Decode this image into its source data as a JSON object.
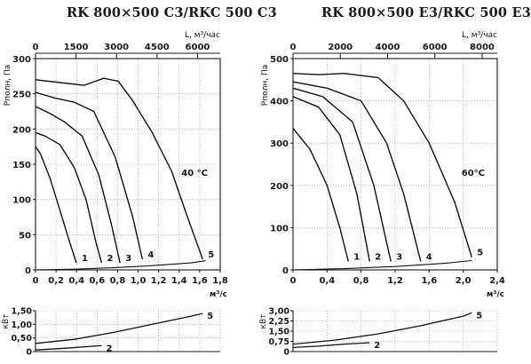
{
  "chart_data": [
    {
      "type": "line",
      "title": "RK 800×500 C3/RKC 500 C3",
      "xlabel": "м³/с",
      "ylabel": "Pполн, Па",
      "top_axis_label": "L, м³/час",
      "annotation": "40 °C",
      "xlim": [
        0,
        1.9
      ],
      "ylim": [
        0,
        300
      ],
      "xticks": [
        "0",
        "0,2",
        "0,4",
        "0,6",
        "0,8",
        "1,0",
        "1,2",
        "1,4",
        "1,6",
        "1,8"
      ],
      "yticks": [
        "0",
        "50",
        "100",
        "150",
        "200",
        "250",
        "300"
      ],
      "top_ticks": [
        "0",
        "1500",
        "3000",
        "4500",
        "6000"
      ],
      "series": [
        {
          "name": "1",
          "x": [
            0,
            0.05,
            0.15,
            0.25,
            0.35,
            0.42
          ],
          "y": [
            175,
            165,
            130,
            85,
            40,
            10
          ]
        },
        {
          "name": "2",
          "x": [
            0,
            0.1,
            0.25,
            0.4,
            0.52,
            0.62,
            0.68
          ],
          "y": [
            195,
            190,
            178,
            145,
            100,
            40,
            10
          ]
        },
        {
          "name": "3",
          "x": [
            0,
            0.15,
            0.3,
            0.48,
            0.65,
            0.78,
            0.87
          ],
          "y": [
            232,
            222,
            210,
            190,
            135,
            65,
            10
          ]
        },
        {
          "name": "4",
          "x": [
            0,
            0.2,
            0.4,
            0.6,
            0.82,
            1.0,
            1.1
          ],
          "y": [
            252,
            244,
            238,
            225,
            160,
            75,
            15
          ]
        },
        {
          "name": "5",
          "x": [
            0,
            0.25,
            0.5,
            0.7,
            0.85,
            1.0,
            1.2,
            1.4,
            1.55,
            1.72
          ],
          "y": [
            270,
            266,
            262,
            272,
            268,
            240,
            195,
            140,
            80,
            15
          ]
        }
      ],
      "system_curve": {
        "x": [
          0,
          0.4,
          0.8,
          1.2,
          1.6,
          1.75
        ],
        "y": [
          0,
          1,
          3,
          6,
          10,
          13
        ]
      },
      "power_panel": {
        "ylabel": "кВт",
        "yticks": [
          "0",
          "0,50",
          "1,00",
          "1,50"
        ],
        "ylim": [
          0,
          1.5
        ],
        "series": [
          {
            "name": "2",
            "x": [
              0,
              0.3,
              0.6,
              0.68
            ],
            "y": [
              0.06,
              0.12,
              0.2,
              0.22
            ]
          },
          {
            "name": "5",
            "x": [
              0,
              0.4,
              0.8,
              1.2,
              1.6,
              1.72
            ],
            "y": [
              0.3,
              0.45,
              0.7,
              1.0,
              1.3,
              1.4
            ]
          }
        ]
      }
    },
    {
      "type": "line",
      "title": "RK 800×500 E3/RKC 500 E3",
      "xlabel": "м³/с",
      "ylabel": "Pполн, Па",
      "top_axis_label": "L, м³/час",
      "annotation": "60°C",
      "xlim": [
        0,
        2.4
      ],
      "ylim": [
        0,
        500
      ],
      "xticks": [
        "0",
        "0,4",
        "0,8",
        "1,2",
        "1,6",
        "2,0",
        "2,4"
      ],
      "yticks": [
        "0",
        "100",
        "200",
        "300",
        "400",
        "500"
      ],
      "top_ticks": [
        "0",
        "2000",
        "4000",
        "6000",
        "8000"
      ],
      "series": [
        {
          "name": "1",
          "x": [
            0,
            0.2,
            0.4,
            0.55,
            0.65
          ],
          "y": [
            335,
            285,
            200,
            100,
            20
          ]
        },
        {
          "name": "2",
          "x": [
            0,
            0.3,
            0.55,
            0.75,
            0.9
          ],
          "y": [
            410,
            385,
            320,
            180,
            20
          ]
        },
        {
          "name": "3",
          "x": [
            0,
            0.35,
            0.7,
            0.95,
            1.15
          ],
          "y": [
            430,
            410,
            350,
            200,
            20
          ]
        },
        {
          "name": "4",
          "x": [
            0,
            0.4,
            0.8,
            1.1,
            1.3,
            1.5
          ],
          "y": [
            445,
            430,
            400,
            300,
            180,
            20
          ]
        },
        {
          "name": "5",
          "x": [
            0,
            0.3,
            0.6,
            1.0,
            1.3,
            1.6,
            1.9,
            2.1
          ],
          "y": [
            465,
            462,
            465,
            455,
            400,
            300,
            160,
            30
          ]
        }
      ],
      "system_curve": {
        "x": [
          0,
          0.6,
          1.2,
          1.8,
          2.1
        ],
        "y": [
          0,
          3,
          8,
          16,
          22
        ]
      },
      "power_panel": {
        "ylabel": "кВт",
        "yticks": [
          "0",
          "0,75",
          "1,50",
          "2,25",
          "3,00"
        ],
        "ylim": [
          0,
          3
        ],
        "series": [
          {
            "name": "2",
            "x": [
              0,
              0.3,
              0.6,
              0.9
            ],
            "y": [
              0.3,
              0.4,
              0.55,
              0.65
            ]
          },
          {
            "name": "5",
            "x": [
              0,
              0.5,
              1.0,
              1.5,
              2.0,
              2.1
            ],
            "y": [
              0.55,
              0.85,
              1.3,
              1.9,
              2.6,
              2.85
            ]
          }
        ]
      }
    }
  ]
}
